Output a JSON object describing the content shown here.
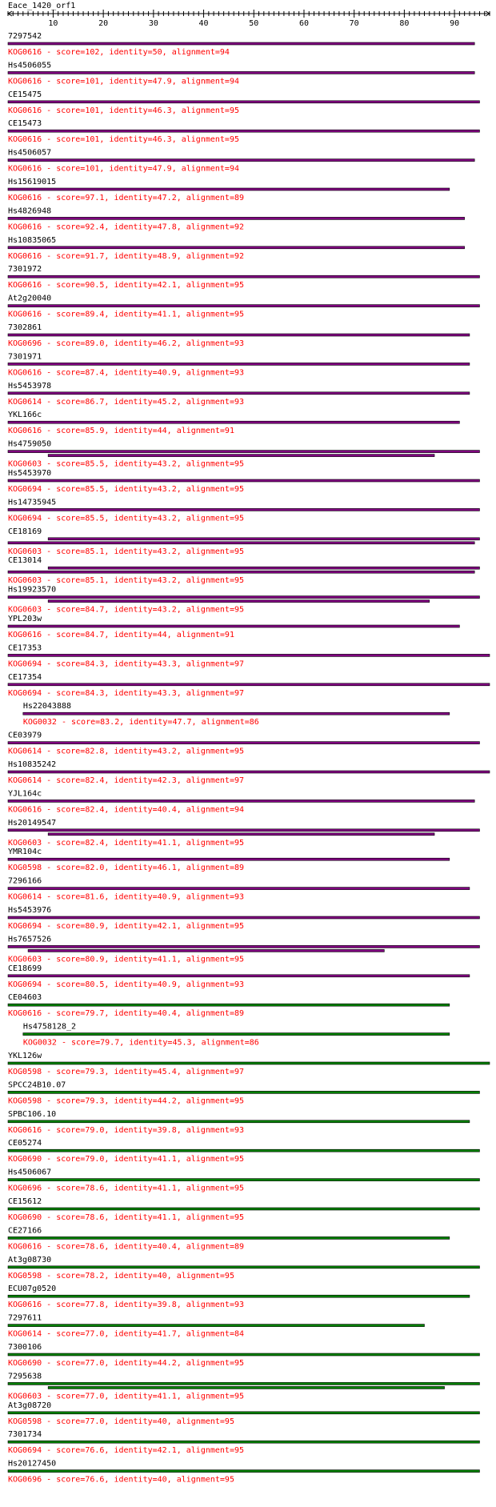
{
  "query": {
    "name": "Eace_1420_orf1",
    "length": 97
  },
  "axis": {
    "min": 1,
    "max": 97,
    "ticks": [
      10,
      20,
      30,
      40,
      50,
      60,
      70,
      80,
      90
    ]
  },
  "colors": {
    "purple": "#800080",
    "green": "#008000",
    "label": "#000000",
    "annotation": "#ff0000"
  },
  "hits": [
    {
      "name": "7297542",
      "kog": "KOG0616",
      "score": "102",
      "identity": "50",
      "alignment": "94",
      "color": "purple",
      "segments": [
        [
          1,
          94
        ]
      ]
    },
    {
      "name": "Hs4506055",
      "kog": "KOG0616",
      "score": "101",
      "identity": "47.9",
      "alignment": "94",
      "color": "purple",
      "segments": [
        [
          1,
          94
        ]
      ]
    },
    {
      "name": "CE15475",
      "kog": "KOG0616",
      "score": "101",
      "identity": "46.3",
      "alignment": "95",
      "color": "purple",
      "segments": [
        [
          1,
          95
        ]
      ]
    },
    {
      "name": "CE15473",
      "kog": "KOG0616",
      "score": "101",
      "identity": "46.3",
      "alignment": "95",
      "color": "purple",
      "segments": [
        [
          1,
          95
        ]
      ]
    },
    {
      "name": "Hs4506057",
      "kog": "KOG0616",
      "score": "101",
      "identity": "47.9",
      "alignment": "94",
      "color": "purple",
      "segments": [
        [
          1,
          94
        ]
      ]
    },
    {
      "name": "Hs15619015",
      "kog": "KOG0616",
      "score": "97.1",
      "identity": "47.2",
      "alignment": "89",
      "color": "purple",
      "segments": [
        [
          1,
          89
        ]
      ]
    },
    {
      "name": "Hs4826948",
      "kog": "KOG0616",
      "score": "92.4",
      "identity": "47.8",
      "alignment": "92",
      "color": "purple",
      "segments": [
        [
          1,
          92
        ]
      ]
    },
    {
      "name": "Hs10835065",
      "kog": "KOG0616",
      "score": "91.7",
      "identity": "48.9",
      "alignment": "92",
      "color": "purple",
      "segments": [
        [
          1,
          92
        ]
      ]
    },
    {
      "name": "7301972",
      "kog": "KOG0616",
      "score": "90.5",
      "identity": "42.1",
      "alignment": "95",
      "color": "purple",
      "segments": [
        [
          1,
          95
        ]
      ]
    },
    {
      "name": "At2g20040",
      "kog": "KOG0616",
      "score": "89.4",
      "identity": "41.1",
      "alignment": "95",
      "color": "purple",
      "segments": [
        [
          1,
          95
        ]
      ]
    },
    {
      "name": "7302861",
      "kog": "KOG0696",
      "score": "89.0",
      "identity": "46.2",
      "alignment": "93",
      "color": "purple",
      "segments": [
        [
          1,
          93
        ]
      ]
    },
    {
      "name": "7301971",
      "kog": "KOG0616",
      "score": "87.4",
      "identity": "40.9",
      "alignment": "93",
      "color": "purple",
      "segments": [
        [
          1,
          93
        ]
      ]
    },
    {
      "name": "Hs5453978",
      "kog": "KOG0614",
      "score": "86.7",
      "identity": "45.2",
      "alignment": "93",
      "color": "purple",
      "segments": [
        [
          1,
          93
        ]
      ]
    },
    {
      "name": "YKL166c",
      "kog": "KOG0616",
      "score": "85.9",
      "identity": "44",
      "alignment": "91",
      "color": "purple",
      "segments": [
        [
          1,
          91
        ]
      ]
    },
    {
      "name": "Hs4759050",
      "kog": "KOG0603",
      "score": "85.5",
      "identity": "43.2",
      "alignment": "95",
      "color": "purple",
      "segments": [
        [
          1,
          95
        ],
        [
          9,
          86
        ]
      ]
    },
    {
      "name": "Hs5453970",
      "kog": "KOG0694",
      "score": "85.5",
      "identity": "43.2",
      "alignment": "95",
      "color": "purple",
      "segments": [
        [
          1,
          95
        ]
      ]
    },
    {
      "name": "Hs14735945",
      "kog": "KOG0694",
      "score": "85.5",
      "identity": "43.2",
      "alignment": "95",
      "color": "purple",
      "segments": [
        [
          1,
          95
        ]
      ]
    },
    {
      "name": "CE18169",
      "kog": "KOG0603",
      "score": "85.1",
      "identity": "43.2",
      "alignment": "95",
      "color": "purple",
      "segments": [
        [
          9,
          95
        ],
        [
          1,
          94
        ]
      ]
    },
    {
      "name": "CE13014",
      "kog": "KOG0603",
      "score": "85.1",
      "identity": "43.2",
      "alignment": "95",
      "color": "purple",
      "segments": [
        [
          9,
          95
        ],
        [
          1,
          94
        ]
      ]
    },
    {
      "name": "Hs19923570",
      "kog": "KOG0603",
      "score": "84.7",
      "identity": "43.2",
      "alignment": "95",
      "color": "purple",
      "segments": [
        [
          1,
          95
        ],
        [
          9,
          85
        ]
      ]
    },
    {
      "name": "YPL203w",
      "kog": "KOG0616",
      "score": "84.7",
      "identity": "44",
      "alignment": "91",
      "color": "purple",
      "segments": [
        [
          1,
          91
        ]
      ]
    },
    {
      "name": "CE17353",
      "kog": "KOG0694",
      "score": "84.3",
      "identity": "43.3",
      "alignment": "97",
      "color": "purple",
      "segments": [
        [
          1,
          97
        ]
      ]
    },
    {
      "name": "CE17354",
      "kog": "KOG0694",
      "score": "84.3",
      "identity": "43.3",
      "alignment": "97",
      "color": "purple",
      "segments": [
        [
          1,
          97
        ]
      ]
    },
    {
      "name": "Hs22043888",
      "kog": "KOG0032",
      "score": "83.2",
      "identity": "47.7",
      "alignment": "86",
      "color": "purple",
      "indent": 4,
      "segments": [
        [
          4,
          89
        ]
      ]
    },
    {
      "name": "CE03979",
      "kog": "KOG0614",
      "score": "82.8",
      "identity": "43.2",
      "alignment": "95",
      "color": "purple",
      "segments": [
        [
          1,
          95
        ]
      ]
    },
    {
      "name": "Hs10835242",
      "kog": "KOG0614",
      "score": "82.4",
      "identity": "42.3",
      "alignment": "97",
      "color": "purple",
      "segments": [
        [
          1,
          97
        ]
      ]
    },
    {
      "name": "YJL164c",
      "kog": "KOG0616",
      "score": "82.4",
      "identity": "40.4",
      "alignment": "94",
      "color": "purple",
      "segments": [
        [
          1,
          94
        ]
      ]
    },
    {
      "name": "Hs20149547",
      "kog": "KOG0603",
      "score": "82.4",
      "identity": "41.1",
      "alignment": "95",
      "color": "purple",
      "segments": [
        [
          1,
          95
        ],
        [
          9,
          86
        ]
      ]
    },
    {
      "name": "YMR104c",
      "kog": "KOG0598",
      "score": "82.0",
      "identity": "46.1",
      "alignment": "89",
      "color": "purple",
      "segments": [
        [
          1,
          89
        ]
      ]
    },
    {
      "name": "7296166",
      "kog": "KOG0614",
      "score": "81.6",
      "identity": "40.9",
      "alignment": "93",
      "color": "purple",
      "segments": [
        [
          1,
          93
        ]
      ]
    },
    {
      "name": "Hs5453976",
      "kog": "KOG0694",
      "score": "80.9",
      "identity": "42.1",
      "alignment": "95",
      "color": "purple",
      "segments": [
        [
          1,
          95
        ]
      ]
    },
    {
      "name": "Hs7657526",
      "kog": "KOG0603",
      "score": "80.9",
      "identity": "41.1",
      "alignment": "95",
      "color": "purple",
      "segments": [
        [
          1,
          95
        ],
        [
          5,
          76
        ]
      ]
    },
    {
      "name": "CE18699",
      "kog": "KOG0694",
      "score": "80.5",
      "identity": "40.9",
      "alignment": "93",
      "color": "purple",
      "segments": [
        [
          1,
          93
        ]
      ]
    },
    {
      "name": "CE04603",
      "kog": "KOG0616",
      "score": "79.7",
      "identity": "40.4",
      "alignment": "89",
      "color": "green",
      "segments": [
        [
          1,
          89
        ]
      ]
    },
    {
      "name": "Hs4758128_2",
      "kog": "KOG0032",
      "score": "79.7",
      "identity": "45.3",
      "alignment": "86",
      "color": "green",
      "indent": 4,
      "segments": [
        [
          4,
          89
        ]
      ]
    },
    {
      "name": "YKL126w",
      "kog": "KOG0598",
      "score": "79.3",
      "identity": "45.4",
      "alignment": "97",
      "color": "green",
      "segments": [
        [
          1,
          97
        ]
      ]
    },
    {
      "name": "SPCC24B10.07",
      "kog": "KOG0598",
      "score": "79.3",
      "identity": "44.2",
      "alignment": "95",
      "color": "green",
      "segments": [
        [
          1,
          95
        ]
      ]
    },
    {
      "name": "SPBC106.10",
      "kog": "KOG0616",
      "score": "79.0",
      "identity": "39.8",
      "alignment": "93",
      "color": "green",
      "segments": [
        [
          1,
          93
        ]
      ]
    },
    {
      "name": "CE05274",
      "kog": "KOG0690",
      "score": "79.0",
      "identity": "41.1",
      "alignment": "95",
      "color": "green",
      "segments": [
        [
          1,
          95
        ]
      ]
    },
    {
      "name": "Hs4506067",
      "kog": "KOG0696",
      "score": "78.6",
      "identity": "41.1",
      "alignment": "95",
      "color": "green",
      "segments": [
        [
          1,
          95
        ]
      ]
    },
    {
      "name": "CE15612",
      "kog": "KOG0690",
      "score": "78.6",
      "identity": "41.1",
      "alignment": "95",
      "color": "green",
      "segments": [
        [
          1,
          95
        ]
      ]
    },
    {
      "name": "CE27166",
      "kog": "KOG0616",
      "score": "78.6",
      "identity": "40.4",
      "alignment": "89",
      "color": "green",
      "segments": [
        [
          1,
          89
        ]
      ]
    },
    {
      "name": "At3g08730",
      "kog": "KOG0598",
      "score": "78.2",
      "identity": "40",
      "alignment": "95",
      "color": "green",
      "segments": [
        [
          1,
          95
        ]
      ]
    },
    {
      "name": "ECU07g0520",
      "kog": "KOG0616",
      "score": "77.8",
      "identity": "39.8",
      "alignment": "93",
      "color": "green",
      "segments": [
        [
          1,
          93
        ]
      ]
    },
    {
      "name": "7297611",
      "kog": "KOG0614",
      "score": "77.0",
      "identity": "41.7",
      "alignment": "84",
      "color": "green",
      "segments": [
        [
          1,
          84
        ]
      ]
    },
    {
      "name": "7300106",
      "kog": "KOG0690",
      "score": "77.0",
      "identity": "44.2",
      "alignment": "95",
      "color": "green",
      "segments": [
        [
          1,
          95
        ]
      ]
    },
    {
      "name": "7295638",
      "kog": "KOG0603",
      "score": "77.0",
      "identity": "41.1",
      "alignment": "95",
      "color": "green",
      "segments": [
        [
          1,
          95
        ],
        [
          9,
          88
        ]
      ]
    },
    {
      "name": "At3g08720",
      "kog": "KOG0598",
      "score": "77.0",
      "identity": "40",
      "alignment": "95",
      "color": "green",
      "segments": [
        [
          1,
          95
        ]
      ]
    },
    {
      "name": "7301734",
      "kog": "KOG0694",
      "score": "76.6",
      "identity": "42.1",
      "alignment": "95",
      "color": "green",
      "segments": [
        [
          1,
          95
        ]
      ]
    },
    {
      "name": "Hs20127450",
      "kog": "KOG0696",
      "score": "76.6",
      "identity": "40",
      "alignment": "95",
      "color": "green",
      "segments": [
        [
          1,
          95
        ]
      ]
    }
  ]
}
